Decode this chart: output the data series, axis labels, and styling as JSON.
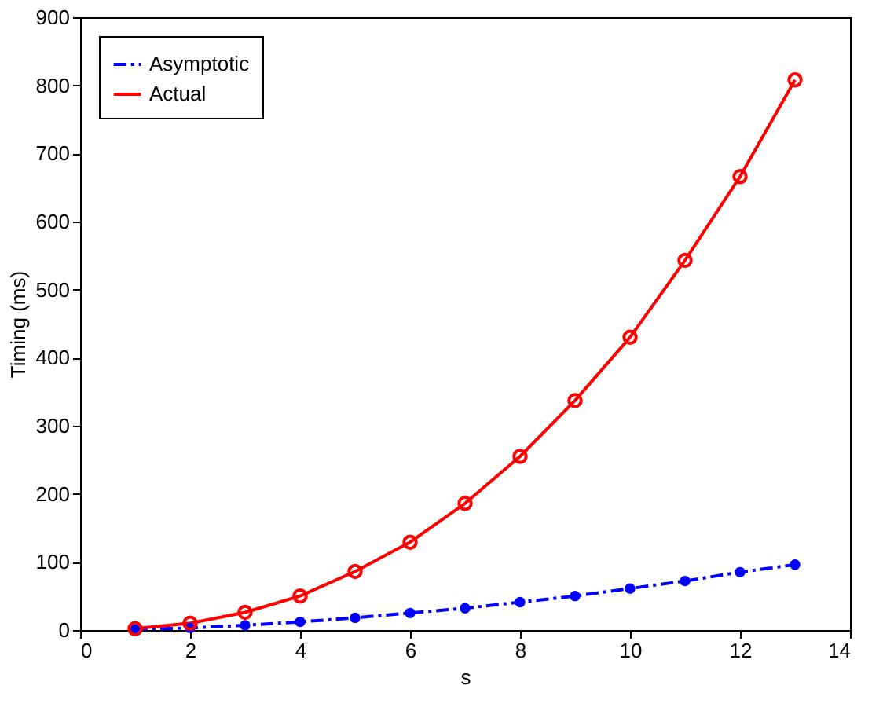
{
  "chart_data": {
    "type": "line",
    "xlabel": "s",
    "ylabel": "Timing (ms)",
    "x": [
      1,
      2,
      3,
      4,
      5,
      6,
      7,
      8,
      9,
      10,
      11,
      12,
      13
    ],
    "series": [
      {
        "name": "Asymptotic",
        "color": "#0000ff",
        "marker": "circle",
        "line_style": "dashed",
        "values": [
          1,
          3,
          7,
          12,
          18,
          25,
          32,
          41,
          50,
          61,
          72,
          85,
          96
        ]
      },
      {
        "name": "Actual",
        "color": "#ff0000",
        "marker": "circle",
        "line_style": "solid",
        "values": [
          2,
          10,
          26,
          50,
          86,
          129,
          186,
          255,
          337,
          430,
          543,
          666,
          808
        ]
      }
    ],
    "xlim": [
      0,
      14
    ],
    "xticks": [
      0,
      2,
      4,
      6,
      8,
      10,
      12,
      14
    ],
    "ylim": [
      0,
      900
    ],
    "yticks": [
      0,
      100,
      200,
      300,
      400,
      500,
      600,
      700,
      800,
      900
    ],
    "grid": false,
    "legend": "top left"
  }
}
